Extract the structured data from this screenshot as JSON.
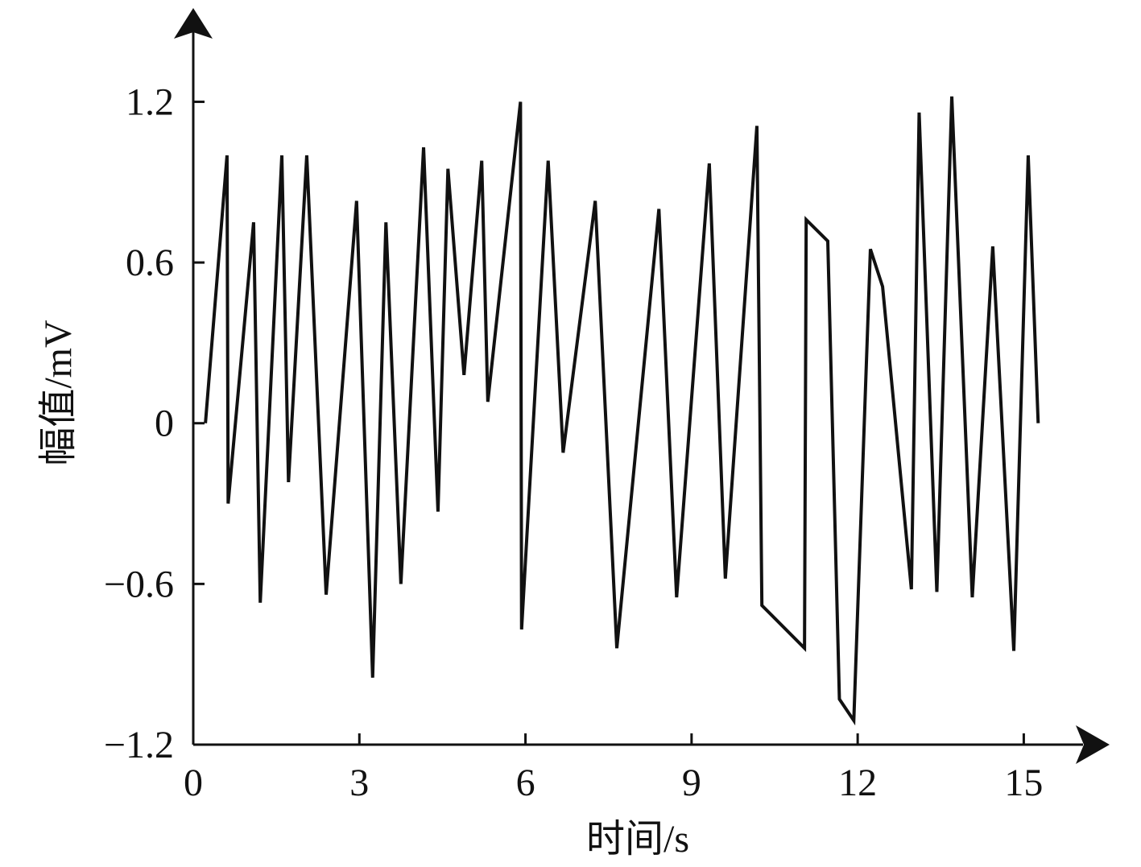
{
  "chart_data": {
    "type": "line",
    "x_label": "时间/s",
    "y_label": "幅值/mV",
    "x": [
      0.22,
      0.61,
      0.63,
      1.09,
      1.21,
      1.6,
      1.72,
      2.05,
      2.4,
      2.95,
      3.24,
      3.48,
      3.75,
      4.16,
      4.42,
      4.6,
      4.89,
      5.21,
      5.32,
      5.91,
      5.93,
      6.41,
      6.68,
      7.26,
      7.65,
      8.41,
      8.73,
      9.32,
      9.61,
      10.18,
      10.27,
      11.04,
      11.07,
      11.46,
      11.67,
      11.93,
      12.23,
      12.45,
      12.97,
      13.11,
      13.43,
      13.7,
      14.07,
      14.44,
      14.82,
      15.08,
      15.26
    ],
    "series": [
      {
        "color": "#111111",
        "values": [
          0,
          1.0,
          -0.3,
          0.75,
          -0.67,
          1.0,
          -0.22,
          1.0,
          -0.64,
          0.83,
          -0.95,
          0.75,
          -0.6,
          1.03,
          -0.33,
          0.95,
          0.18,
          0.98,
          0.08,
          1.2,
          -0.77,
          0.98,
          -0.11,
          0.83,
          -0.84,
          0.8,
          -0.65,
          0.97,
          -0.58,
          1.11,
          -0.68,
          -0.84,
          0.76,
          0.68,
          -1.03,
          -1.11,
          0.65,
          0.51,
          -0.62,
          1.16,
          -0.63,
          1.22,
          -0.65,
          0.66,
          -0.85,
          1.0,
          0
        ]
      }
    ],
    "xlim": [
      0,
      16.55
    ],
    "ylim": [
      -1.2,
      1.55
    ],
    "xticks": [
      0,
      3,
      6,
      9,
      12,
      15
    ],
    "yticks": [
      {
        "value": -1.2,
        "label": "−1.2"
      },
      {
        "value": -0.6,
        "label": "−0.6"
      },
      0,
      0.6,
      1.2
    ]
  }
}
